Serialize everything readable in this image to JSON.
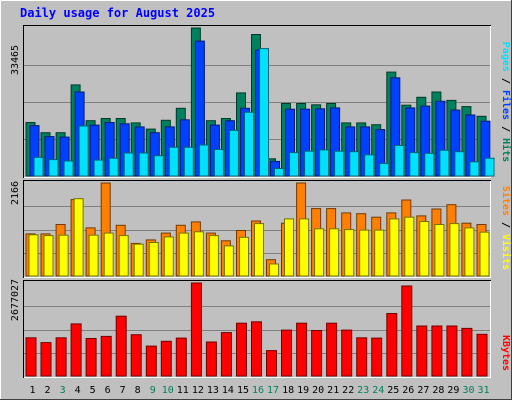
{
  "chart_data": [
    {
      "type": "bar",
      "title": "Daily usage for August 2025",
      "ymax_label": "33465",
      "ylabels": [
        "Hits",
        "Files",
        "Pages"
      ],
      "categories": [
        "1",
        "2",
        "3",
        "4",
        "5",
        "6",
        "7",
        "8",
        "9",
        "10",
        "11",
        "12",
        "13",
        "14",
        "15",
        "16",
        "17",
        "18",
        "19",
        "20",
        "21",
        "22",
        "23",
        "24",
        "25",
        "26",
        "27",
        "28",
        "29",
        "30",
        "31"
      ],
      "ylim": [
        0,
        33465
      ],
      "grid": true,
      "series": [
        {
          "name": "Hits",
          "color": "#00805c",
          "values": [
            12100,
            9800,
            9800,
            20600,
            12500,
            13000,
            13000,
            12000,
            10600,
            12600,
            15300,
            33465,
            12500,
            13000,
            18800,
            32000,
            3900,
            16400,
            16400,
            16100,
            16400,
            12000,
            12000,
            11600,
            23500,
            16000,
            17800,
            19000,
            17100,
            15700,
            13500
          ]
        },
        {
          "name": "Files",
          "color": "#0040ff",
          "values": [
            11400,
            8900,
            8800,
            19000,
            11500,
            12100,
            11800,
            11100,
            9800,
            11100,
            12700,
            30500,
            11500,
            12500,
            15300,
            28500,
            3300,
            15100,
            15100,
            15200,
            15400,
            11100,
            11100,
            10500,
            22200,
            15400,
            15800,
            16900,
            14900,
            13800,
            12400
          ]
        },
        {
          "name": "Pages",
          "color": "#00e0ff",
          "values": [
            4200,
            3700,
            3400,
            11300,
            3600,
            4000,
            5200,
            5200,
            4600,
            6500,
            6500,
            7000,
            6000,
            10300,
            14400,
            28800,
            1700,
            5300,
            5600,
            5900,
            5600,
            5500,
            4800,
            2800,
            6900,
            5300,
            5100,
            5800,
            5500,
            3200,
            4000
          ]
        }
      ]
    },
    {
      "type": "bar",
      "ymax_label": "2166",
      "ylabels": [
        "Visits",
        "Sites"
      ],
      "categories": [
        "1",
        "2",
        "3",
        "4",
        "5",
        "6",
        "7",
        "8",
        "9",
        "10",
        "11",
        "12",
        "13",
        "14",
        "15",
        "16",
        "17",
        "18",
        "19",
        "20",
        "21",
        "22",
        "23",
        "24",
        "25",
        "26",
        "27",
        "28",
        "29",
        "30",
        "31"
      ],
      "ylim": [
        0,
        2166
      ],
      "grid": true,
      "series": [
        {
          "name": "Visits",
          "color": "#ff8000",
          "values": [
            980,
            980,
            1200,
            1780,
            1120,
            2166,
            1180,
            760,
            840,
            1000,
            1180,
            1260,
            1000,
            820,
            1060,
            1280,
            380,
            1230,
            2166,
            1570,
            1570,
            1470,
            1450,
            1370,
            1470,
            1770,
            1400,
            1560,
            1660,
            1230,
            1200
          ]
        },
        {
          "name": "Sites",
          "color": "#ffff00",
          "values": [
            960,
            940,
            950,
            1800,
            950,
            1000,
            940,
            740,
            780,
            910,
            1000,
            1030,
            940,
            700,
            900,
            1220,
            280,
            1330,
            1330,
            1100,
            1100,
            1080,
            1070,
            1070,
            1330,
            1370,
            1270,
            1200,
            1220,
            1120,
            1020
          ]
        }
      ]
    },
    {
      "type": "bar",
      "ymax_label": "2677027",
      "ylabels": [
        "KBytes"
      ],
      "categories": [
        "1",
        "2",
        "3",
        "4",
        "5",
        "6",
        "7",
        "8",
        "9",
        "10",
        "11",
        "12",
        "13",
        "14",
        "15",
        "16",
        "17",
        "18",
        "19",
        "20",
        "21",
        "22",
        "23",
        "24",
        "25",
        "26",
        "27",
        "28",
        "29",
        "30",
        "31"
      ],
      "ylim": [
        0,
        2677027
      ],
      "grid": true,
      "series": [
        {
          "name": "KBytes",
          "color": "#ff0000",
          "values": [
            1100000,
            960000,
            1100000,
            1500000,
            1080000,
            1140000,
            1720000,
            1190000,
            860000,
            1000000,
            1090000,
            2677027,
            980000,
            1250000,
            1520000,
            1560000,
            730000,
            1320000,
            1520000,
            1310000,
            1520000,
            1320000,
            1100000,
            1090000,
            1800000,
            2590000,
            1440000,
            1440000,
            1440000,
            1370000,
            1200000
          ]
        }
      ]
    }
  ],
  "day_label_colors": [
    "#000000",
    "#000000",
    "#00805c",
    "#000000",
    "#000000",
    "#000000",
    "#000000",
    "#000000",
    "#00805c",
    "#00805c",
    "#000000",
    "#000000",
    "#000000",
    "#000000",
    "#000000",
    "#00805c",
    "#00805c",
    "#000000",
    "#000000",
    "#000000",
    "#000000",
    "#000000",
    "#00805c",
    "#00805c",
    "#000000",
    "#000000",
    "#000000",
    "#000000",
    "#000000",
    "#00805c",
    "#00805c"
  ]
}
